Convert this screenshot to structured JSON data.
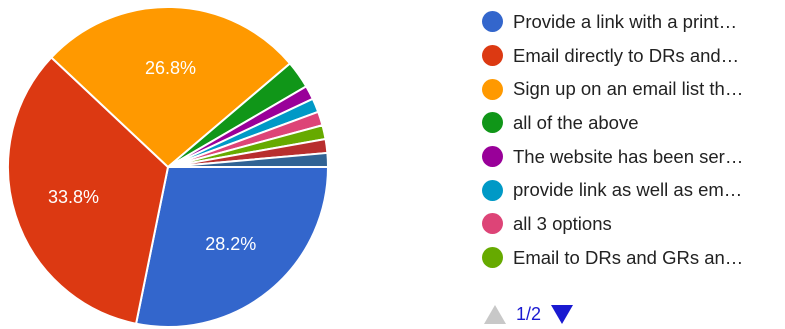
{
  "chart_data": {
    "type": "pie",
    "legend_position": "right",
    "slices": [
      {
        "label": "Provide a link with a print…",
        "value": 28.2,
        "display": "28.2%",
        "color": "#3366cc"
      },
      {
        "label": "Email directly to DRs and…",
        "value": 33.8,
        "display": "33.8%",
        "color": "#dc3912"
      },
      {
        "label": "Sign up on an email list th…",
        "value": 26.8,
        "display": "26.8%",
        "color": "#ff9900"
      },
      {
        "label": "all of the above",
        "value": 2.8,
        "display": "",
        "color": "#109618"
      },
      {
        "label": "The website has been ser…",
        "value": 1.4,
        "display": "",
        "color": "#990099"
      },
      {
        "label": "provide link as well as em…",
        "value": 1.4,
        "display": "",
        "color": "#0099c6"
      },
      {
        "label": "all 3 options",
        "value": 1.4,
        "display": "",
        "color": "#dd4477"
      },
      {
        "label": "Email to DRs and GRs an…",
        "value": 1.4,
        "display": "",
        "color": "#66aa00"
      },
      {
        "label": "",
        "value": 1.4,
        "display": "",
        "color": "#b82e2e"
      },
      {
        "label": "",
        "value": 1.4,
        "display": "",
        "color": "#316395"
      }
    ]
  },
  "legend": {
    "visible_count": 8
  },
  "pager": {
    "text": "1/2"
  }
}
